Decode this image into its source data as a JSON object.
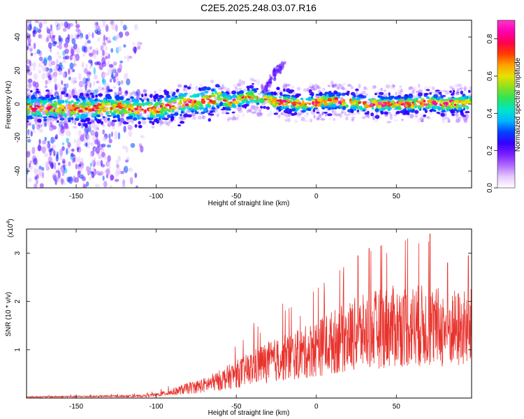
{
  "title": "C2E5.2025.248.03.07.R16",
  "colors": {
    "snr_line": "#e8332d",
    "frame": "#000000",
    "background": "#ffffff"
  },
  "colorbar": {
    "label": "Normalized spectral amplitude",
    "range": [
      0.0,
      0.9
    ],
    "ticks": [
      "0.0",
      "0.2",
      "0.4",
      "0.6",
      "0.8"
    ],
    "tick_values": [
      0.0,
      0.2,
      0.4,
      0.6,
      0.8
    ],
    "colormap": [
      "#ffffff",
      "#e6c8ff",
      "#b06cff",
      "#7a1fff",
      "#3300ff",
      "#0044ff",
      "#00b8ff",
      "#00e5c8",
      "#2ee35a",
      "#8be020",
      "#e8e000",
      "#ffa000",
      "#ff3b00",
      "#ff0050",
      "#ff00b0",
      "#ff33cc"
    ]
  },
  "chart_data": [
    {
      "type": "heatmap",
      "name": "spectrogram",
      "title": "C2E5.2025.248.03.07.R16",
      "xlabel": "Height of straight line (km)",
      "ylabel": "Frequency (Hz)",
      "xlim": [
        -181,
        97
      ],
      "ylim": [
        -50,
        50
      ],
      "xticks": [
        -150,
        -100,
        -50,
        0,
        50
      ],
      "xtick_labels": [
        "-150",
        "-100",
        "-50",
        "0",
        "50"
      ],
      "yticks": [
        -40,
        -20,
        0,
        20,
        40
      ],
      "ytick_labels": [
        "-40",
        "-20",
        "0",
        "20",
        "40"
      ],
      "ridge": {
        "x": [
          -181,
          -150,
          -125,
          -110,
          -100,
          -80,
          -70,
          -60,
          -55,
          -50,
          -45,
          -40,
          -35,
          -30,
          -25,
          -20,
          -10,
          0,
          10,
          20,
          30,
          40,
          50,
          60,
          70,
          80,
          97
        ],
        "f": [
          -2,
          -3,
          -2,
          -3,
          -3,
          1,
          2,
          4,
          1,
          2,
          4,
          5,
          4,
          3,
          1,
          1,
          0,
          1,
          2,
          1,
          0,
          0,
          0,
          0,
          1,
          0,
          1
        ]
      },
      "noise_region_x": [
        -181,
        -107
      ],
      "branch_feature": {
        "x": [
          -33,
          -20
        ],
        "f": [
          8,
          25
        ]
      }
    },
    {
      "type": "line",
      "name": "snr",
      "xlabel": "Height of straight line (km)",
      "ylabel": "SNR (10 * v/v)",
      "exponent_label": "(x10",
      "exponent_sup": "4",
      "exponent_close": ")",
      "xlim": [
        -181,
        97
      ],
      "ylim": [
        0,
        3.5
      ],
      "xticks": [
        -150,
        -100,
        -50,
        0,
        50
      ],
      "xtick_labels": [
        "-150",
        "-100",
        "-50",
        "0",
        "50"
      ],
      "yticks": [
        1,
        2,
        3
      ],
      "ytick_labels": [
        "1",
        "2",
        "3"
      ],
      "envelope": {
        "x": [
          -181,
          -110,
          -100,
          -90,
          -80,
          -70,
          -60,
          -50,
          -40,
          -35,
          -30,
          -20,
          -10,
          0,
          10,
          20,
          30,
          40,
          50,
          60,
          70,
          80,
          90,
          97
        ],
        "y": [
          0.03,
          0.05,
          0.08,
          0.15,
          0.25,
          0.32,
          0.45,
          0.6,
          0.75,
          0.85,
          0.9,
          1.0,
          1.1,
          1.25,
          1.4,
          1.55,
          1.65,
          1.75,
          1.8,
          1.82,
          1.8,
          1.75,
          1.72,
          1.75
        ]
      },
      "peaks": [
        {
          "x": -39,
          "y": 1.55
        },
        {
          "x": -35,
          "y": 1.35
        },
        {
          "x": -21,
          "y": 1.95
        },
        {
          "x": -10,
          "y": 1.7
        },
        {
          "x": 5,
          "y": 2.15
        },
        {
          "x": 17,
          "y": 2.55
        },
        {
          "x": 26,
          "y": 2.95
        },
        {
          "x": 33,
          "y": 3.1
        },
        {
          "x": 44,
          "y": 3.0
        },
        {
          "x": 57,
          "y": 3.3
        },
        {
          "x": 64,
          "y": 3.2
        },
        {
          "x": 71,
          "y": 3.4
        },
        {
          "x": 82,
          "y": 2.8
        },
        {
          "x": 95,
          "y": 2.95
        }
      ]
    }
  ]
}
